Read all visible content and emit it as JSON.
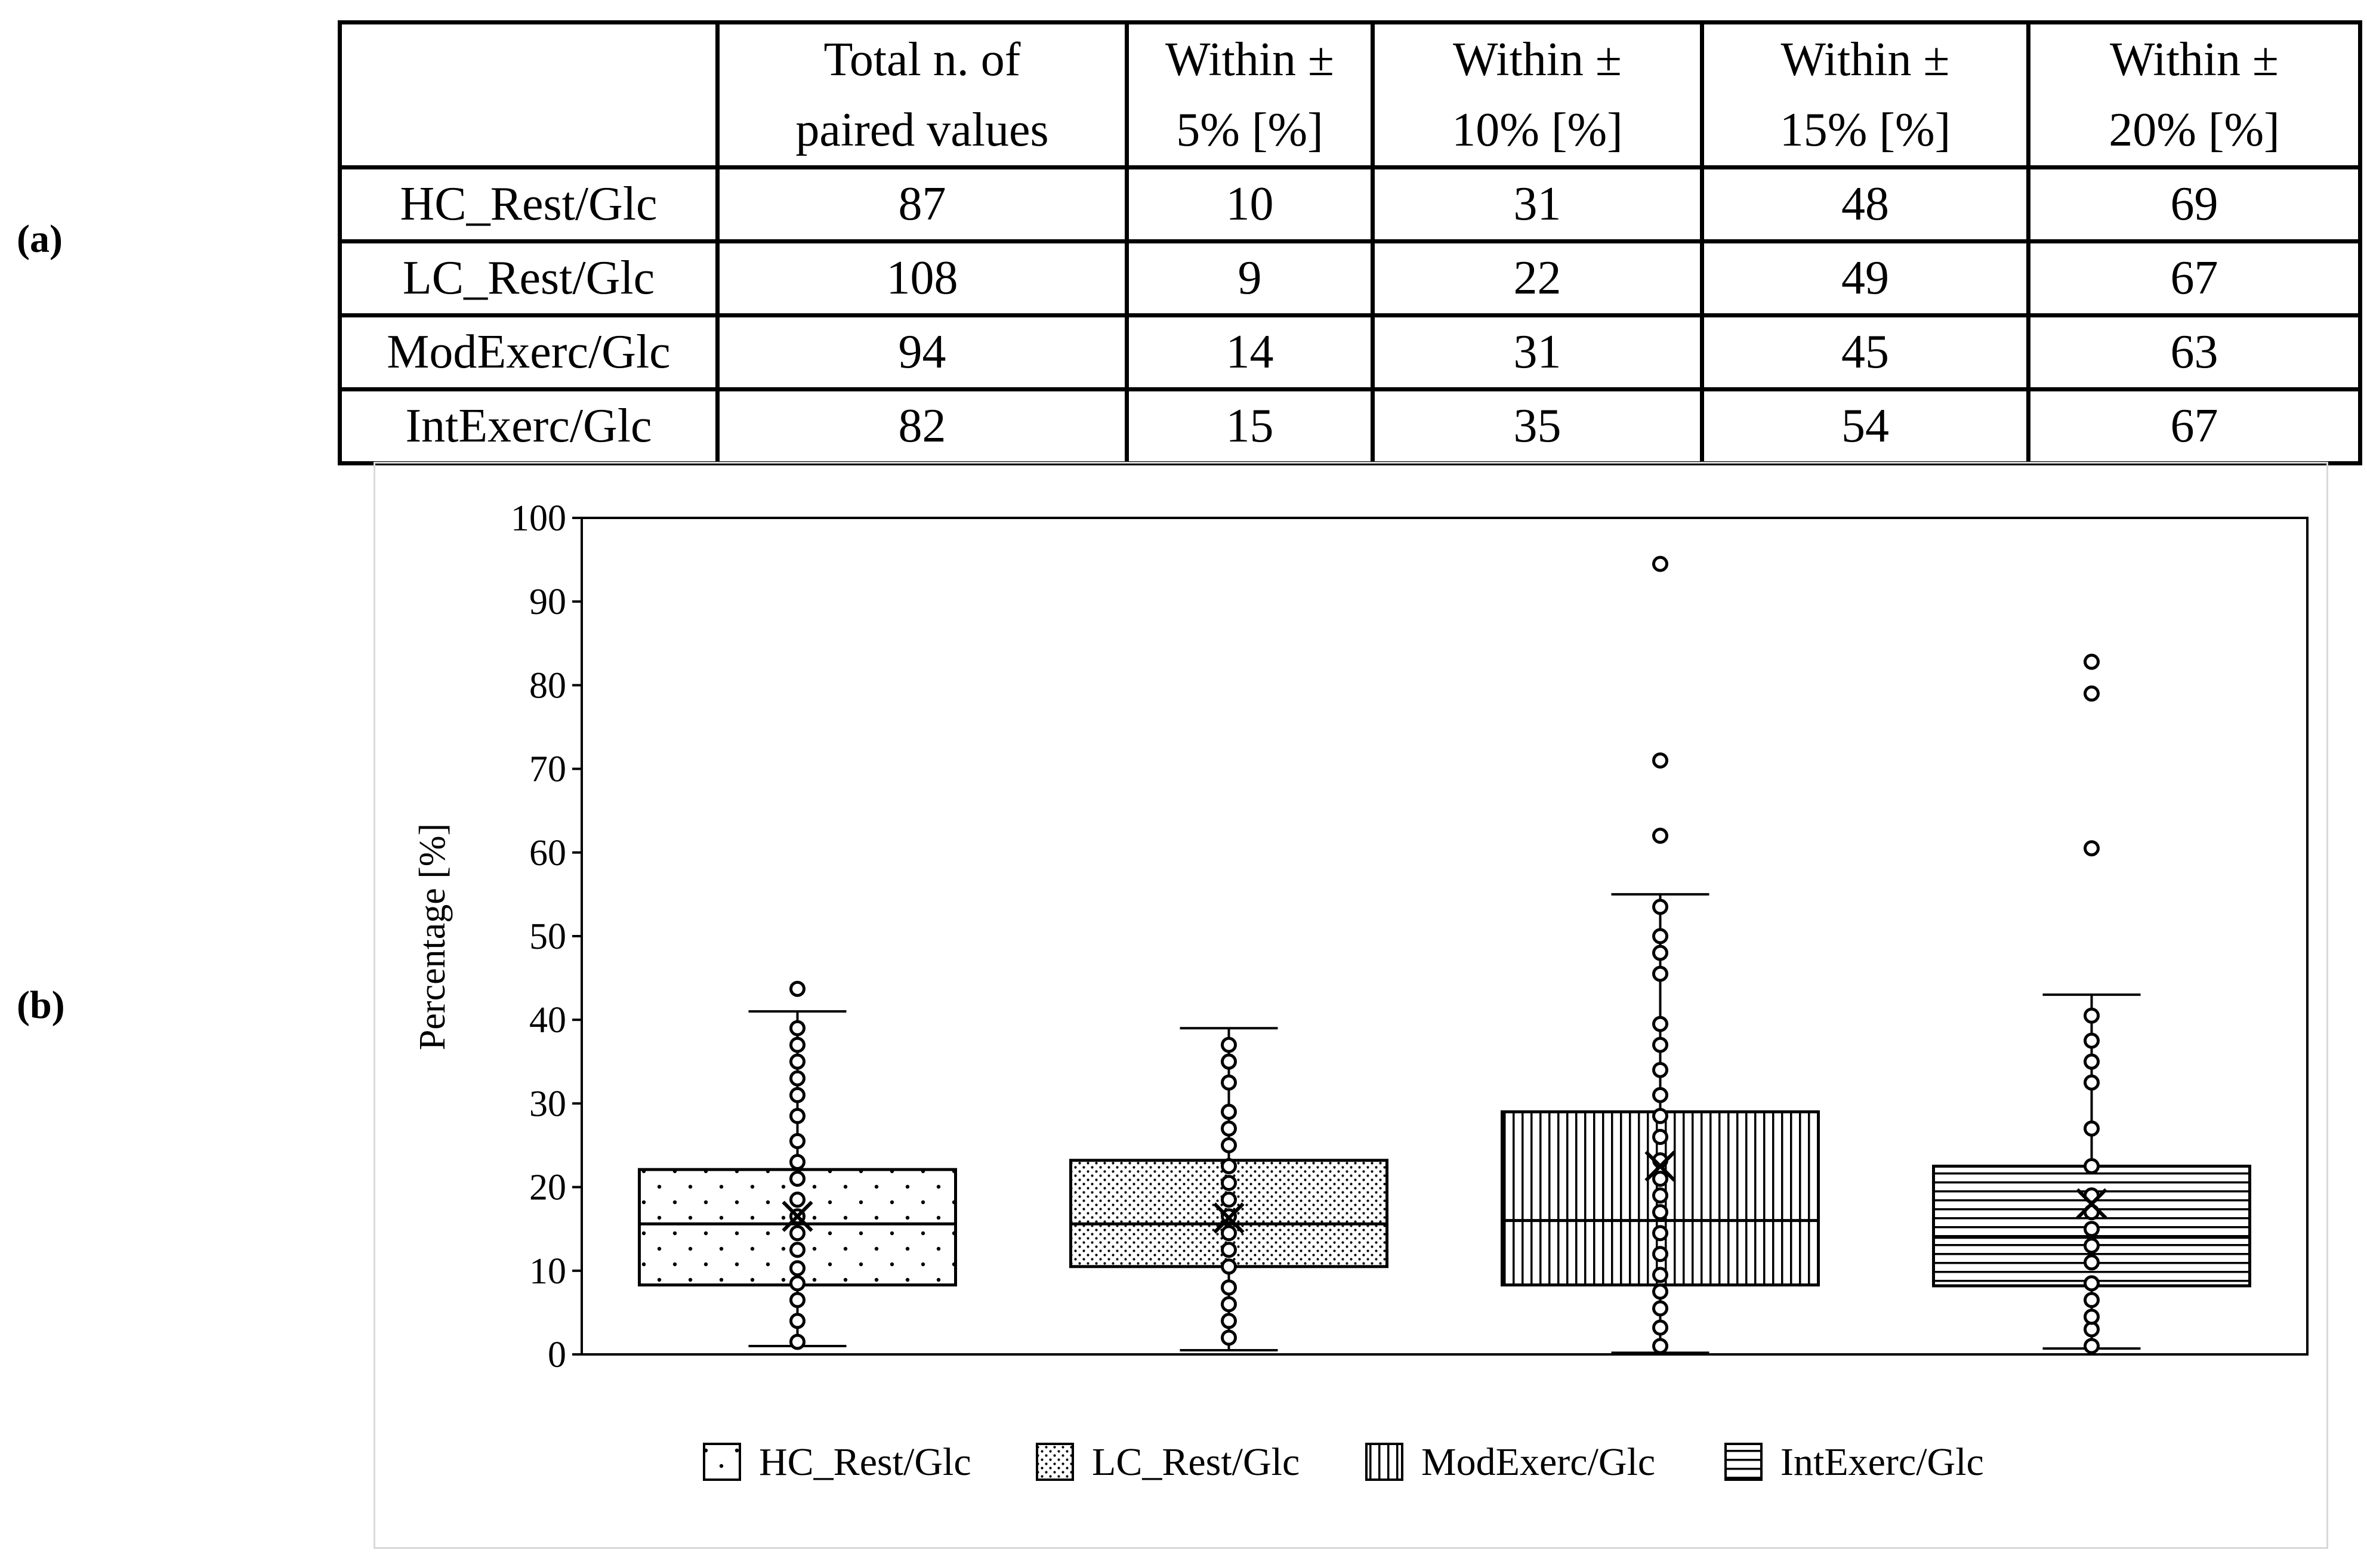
{
  "panel_labels": {
    "a": "(a)",
    "b": "(b)"
  },
  "table": {
    "headers": [
      "",
      "Total n. of paired values",
      "Within ± 5% [%]",
      "Within ± 10% [%]",
      "Within ± 15% [%]",
      "Within ± 20% [%]"
    ],
    "rows": [
      [
        "HC_Rest/Glc",
        "87",
        "10",
        "31",
        "48",
        "69"
      ],
      [
        "LC_Rest/Glc",
        "108",
        "9",
        "22",
        "49",
        "67"
      ],
      [
        "ModExerc/Glc",
        "94",
        "14",
        "31",
        "45",
        "63"
      ],
      [
        "IntExerc/Glc",
        "82",
        "15",
        "35",
        "54",
        "67"
      ]
    ]
  },
  "chart_data": {
    "type": "box",
    "title": "",
    "xlabel": "",
    "ylabel": "Percentage [%]",
    "ylim": [
      0,
      100
    ],
    "yticks": [
      0,
      10,
      20,
      30,
      40,
      50,
      60,
      70,
      80,
      90,
      100
    ],
    "legend_position": "bottom",
    "series": [
      {
        "name": "HC_Rest/Glc",
        "pattern": "sparse-dots",
        "whisker_low": 1,
        "q1": 8.3,
        "median": 15.6,
        "q3": 22.1,
        "whisker_high": 41,
        "mean": 16.5,
        "points": [
          1.5,
          4,
          6.5,
          8.5,
          10.3,
          12.5,
          14.5,
          16.5,
          18.5,
          21,
          23,
          25.5,
          28.5,
          31,
          33,
          35,
          37,
          39,
          43.7
        ]
      },
      {
        "name": "LC_Rest/Glc",
        "pattern": "dense-dots",
        "whisker_low": 0.5,
        "q1": 10.5,
        "median": 15.6,
        "q3": 23.2,
        "whisker_high": 39,
        "mean": 16.3,
        "points": [
          2,
          4,
          6,
          8,
          10.5,
          12.5,
          14.5,
          16.5,
          18.5,
          20.5,
          22.5,
          25,
          27,
          29,
          32.5,
          35,
          37
        ]
      },
      {
        "name": "ModExerc/Glc",
        "pattern": "vertical-lines",
        "whisker_low": 0.2,
        "q1": 8.3,
        "median": 16,
        "q3": 29,
        "whisker_high": 55,
        "mean": 22.5,
        "points": [
          1,
          3.2,
          5.5,
          7.5,
          9.5,
          12,
          14.5,
          17,
          19,
          21,
          23.2,
          26,
          28.5,
          31,
          34,
          37,
          39.5,
          45.5,
          48,
          50,
          53.5,
          62,
          71,
          94.5
        ]
      },
      {
        "name": "IntExerc/Glc",
        "pattern": "horizontal-lines",
        "whisker_low": 0.7,
        "q1": 8.2,
        "median": 14,
        "q3": 22.5,
        "whisker_high": 43,
        "mean": 18,
        "points": [
          1,
          3,
          4.5,
          6.5,
          8.5,
          11,
          13,
          15,
          17,
          19,
          22.5,
          27,
          32.5,
          35,
          37.5,
          40.5,
          60.5,
          79,
          82.8
        ]
      }
    ]
  }
}
